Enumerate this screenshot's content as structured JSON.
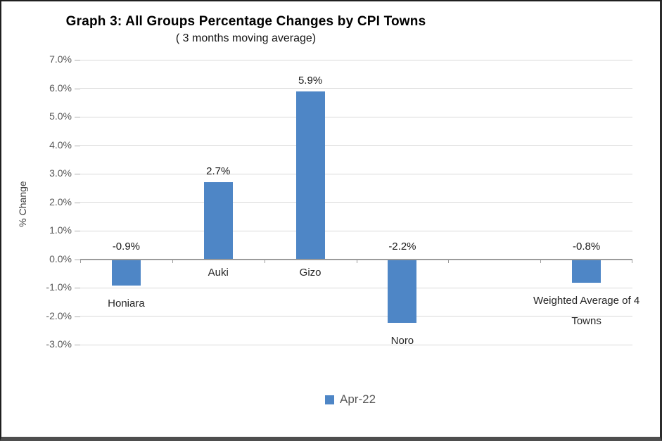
{
  "chart_data": {
    "type": "bar",
    "title": "Graph 3: All Groups Percentage Changes by CPI Towns",
    "subtitle": "( 3 months moving average)",
    "ylabel": "% Change",
    "categories": [
      "Honiara",
      "Auki",
      "Gizo",
      "Noro",
      "",
      "Weighted Average of 4 Towns"
    ],
    "series": [
      {
        "name": "Apr-22",
        "color": "#4E86C6",
        "values": [
          -0.9,
          2.7,
          5.9,
          -2.2,
          null,
          -0.8
        ],
        "data_labels": [
          "-0.9%",
          "2.7%",
          "5.9%",
          "-2.2%",
          "",
          "-0.8%"
        ]
      }
    ],
    "ylim": [
      -3.0,
      7.0
    ],
    "ytick_step": 1.0,
    "ytick_labels": [
      "7.0%",
      "6.0%",
      "5.0%",
      "4.0%",
      "3.0%",
      "2.0%",
      "1.0%",
      "0.0%",
      "-1.0%",
      "-2.0%",
      "-3.0%"
    ],
    "grid": true,
    "legend_position": "bottom",
    "gridline_color": "#D9D9D9",
    "axis_line_color": "#9B9B9B",
    "text_color": "#595959"
  }
}
